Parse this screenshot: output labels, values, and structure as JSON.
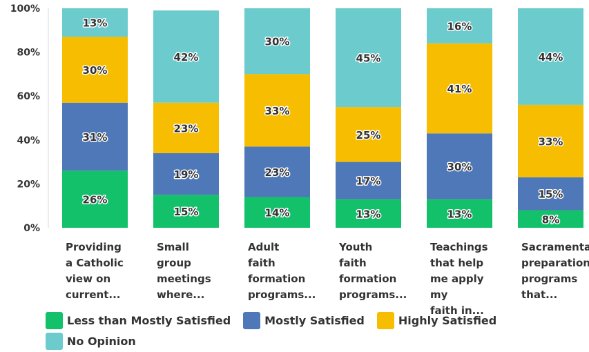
{
  "chart_data": {
    "type": "bar",
    "stacked": true,
    "categories": [
      "Providing\na Catholic\nview on\ncurrent...",
      "Small\ngroup\nmeetings\nwhere...",
      "Adult\nfaith\nformation\nprograms...",
      "Youth\nfaith\nformation\nprograms...",
      "Teachings\nthat help\nme apply\nmy\nfaith in...",
      "Sacramental\npreparation\nprograms\nthat..."
    ],
    "series": [
      {
        "name": "Less than Mostly Satisfied",
        "color": "#12c16a",
        "values": [
          26,
          15,
          14,
          13,
          13,
          8
        ]
      },
      {
        "name": "Mostly Satisfied",
        "color": "#4e78b8",
        "values": [
          31,
          19,
          23,
          17,
          30,
          15
        ]
      },
      {
        "name": "Highly Satisfied",
        "color": "#f7bd00",
        "values": [
          30,
          23,
          33,
          25,
          41,
          33
        ]
      },
      {
        "name": "No Opinion",
        "color": "#6ccbcd",
        "values": [
          13,
          42,
          30,
          45,
          16,
          44
        ]
      }
    ],
    "y_ticks": [
      "0%",
      "20%",
      "40%",
      "60%",
      "80%",
      "100%"
    ],
    "ylim": [
      0,
      100
    ],
    "grid": false,
    "legend_position": "bottom"
  }
}
